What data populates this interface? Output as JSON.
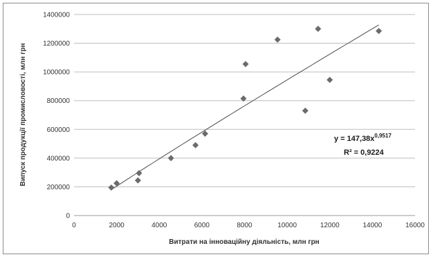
{
  "chart_data": {
    "type": "scatter",
    "xlabel": "Витрати на інноваційну діяльність, млн грн",
    "ylabel": "Випуск продукції промисловості, млн грн",
    "xlim": [
      0,
      16000
    ],
    "ylim": [
      0,
      1400000
    ],
    "x_ticks": [
      0,
      2000,
      4000,
      6000,
      8000,
      10000,
      12000,
      14000,
      16000
    ],
    "y_ticks": [
      0,
      200000,
      400000,
      600000,
      800000,
      1000000,
      1200000,
      1400000
    ],
    "x_tick_labels": [
      "0",
      "2000",
      "4000",
      "6000",
      "8000",
      "10000",
      "12000",
      "14000",
      "16000"
    ],
    "y_tick_labels": [
      "0",
      "200000",
      "400000",
      "600000",
      "800000",
      "1000000",
      "1200000",
      "1400000"
    ],
    "grid": "horizontal",
    "marker": "diamond",
    "marker_color": "#6b6b6b",
    "points": [
      {
        "x": 1750,
        "y": 195000
      },
      {
        "x": 2000,
        "y": 225000
      },
      {
        "x": 3000,
        "y": 245000
      },
      {
        "x": 3050,
        "y": 295000
      },
      {
        "x": 4550,
        "y": 400000
      },
      {
        "x": 5700,
        "y": 490000
      },
      {
        "x": 6150,
        "y": 570000
      },
      {
        "x": 7950,
        "y": 815000
      },
      {
        "x": 8050,
        "y": 1055000
      },
      {
        "x": 9550,
        "y": 1225000
      },
      {
        "x": 10850,
        "y": 730000
      },
      {
        "x": 11450,
        "y": 1300000
      },
      {
        "x": 12000,
        "y": 945000
      },
      {
        "x": 14300,
        "y": 1285000
      }
    ],
    "trendline": {
      "a": 147.38,
      "b": 0.9517,
      "x_start": 1750,
      "x_end": 14300,
      "color": "#4a4a4a",
      "equation_main": "y = 147,38x",
      "equation_exp": "0,9517",
      "r2_label": "R² = 0,9224"
    }
  }
}
